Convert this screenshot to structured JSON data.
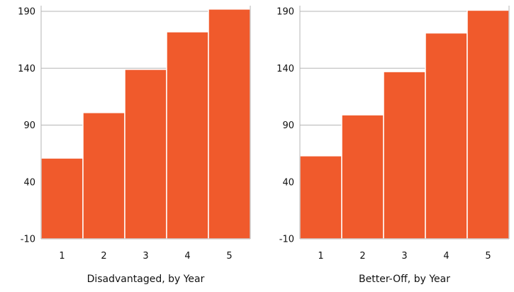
{
  "chart_data": [
    {
      "type": "bar",
      "categories": [
        "1",
        "2",
        "3",
        "4",
        "5"
      ],
      "values": [
        61,
        101,
        139,
        172,
        192
      ],
      "xlabel": "Disadvantaged, by Year",
      "ylabel": "",
      "ylim": [
        -10,
        195
      ],
      "yticks": [
        -10,
        40,
        90,
        140,
        190
      ],
      "grid": true,
      "bar_color": "#f05a2c",
      "axis_color": "#b5b5b5"
    },
    {
      "type": "bar",
      "categories": [
        "1",
        "2",
        "3",
        "4",
        "5"
      ],
      "values": [
        63,
        99,
        137,
        171,
        191
      ],
      "xlabel": "Better-Off, by Year",
      "ylabel": "",
      "ylim": [
        -10,
        195
      ],
      "yticks": [
        -10,
        40,
        90,
        140,
        190
      ],
      "grid": true,
      "bar_color": "#f05a2c",
      "axis_color": "#b5b5b5"
    }
  ]
}
